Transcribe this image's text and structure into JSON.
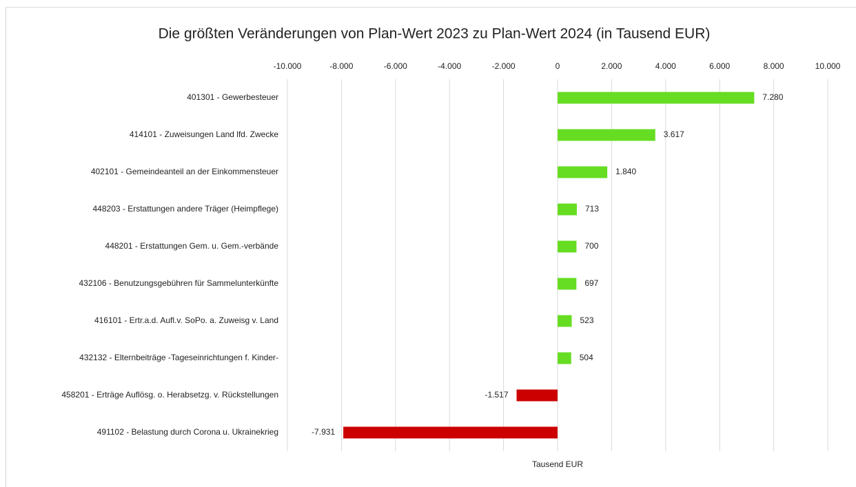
{
  "chart_data": {
    "type": "bar",
    "orientation": "horizontal",
    "title": "Die größten Veränderungen von  Plan-Wert 2023  zu  Plan-Wert 2024  (in Tausend EUR)",
    "x_label": "Tausend EUR",
    "categories": [
      "401301 - Gewerbesteuer",
      "414101 - Zuweisungen Land lfd. Zwecke",
      "402101 - Gemeindeanteil an der Einkommensteuer",
      "448203 - Erstattungen andere Träger (Heimpflege)",
      "448201 - Erstattungen Gem. u. Gem.-verbände",
      "432106 - Benutzungsgebühren für Sammelunterkünfte",
      "416101 - Ertr.a.d. Aufl.v. SoPo. a. Zuweisg v. Land",
      "432132 - Elternbeiträge -Tageseinrichtungen f. Kinder-",
      "458201 - Erträge Auflösg. o. Herabsetzg. v. Rückstellungen",
      "491102 - Belastung durch Corona u. Ukrainekrieg"
    ],
    "values": [
      7280,
      3617,
      1840,
      713,
      700,
      697,
      523,
      504,
      -1517,
      -7931
    ],
    "value_labels": [
      "7.280",
      "3.617",
      "1.840",
      "713",
      "700",
      "697",
      "523",
      "504",
      "-1.517",
      "-7.931"
    ],
    "color_positive": "#66dd22",
    "color_negative": "#cc0000",
    "xlim": [
      -10000,
      10000
    ],
    "xticks": [
      {
        "value": -10000,
        "label": "-10.000"
      },
      {
        "value": -8000,
        "label": "-8.000"
      },
      {
        "value": -6000,
        "label": "-6.000"
      },
      {
        "value": -4000,
        "label": "-4.000"
      },
      {
        "value": -2000,
        "label": "-2.000"
      },
      0,
      {
        "value": 2000,
        "label": "2.000"
      },
      {
        "value": 4000,
        "label": "4.000"
      },
      {
        "value": 6000,
        "label": "6.000"
      },
      {
        "value": 8000,
        "label": "8.000"
      },
      {
        "value": 10000,
        "label": "10.000"
      }
    ],
    "grid": true
  }
}
